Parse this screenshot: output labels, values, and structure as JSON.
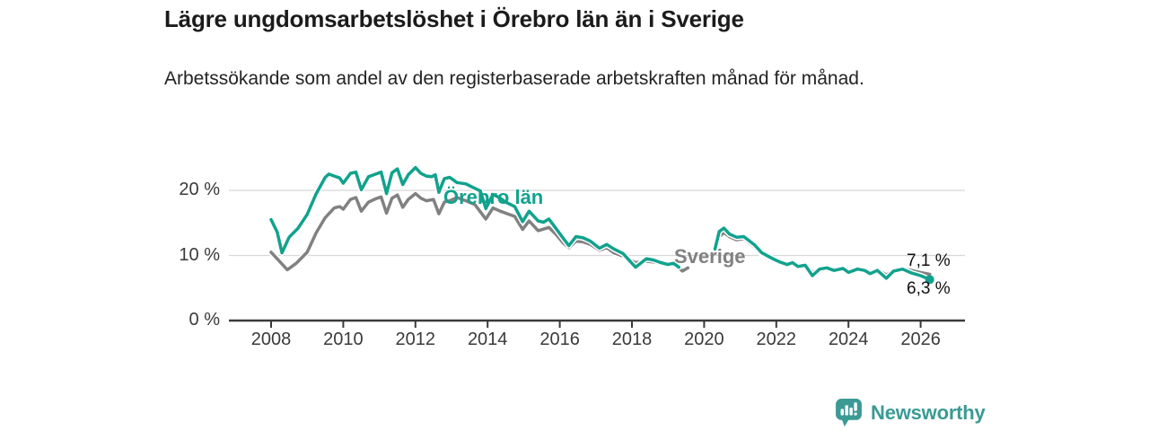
{
  "chart_data": {
    "type": "line",
    "title": "Lägre ungdomsarbetslöshet i Örebro län än i Sverige",
    "subtitle": "Arbetssökande som andel av den registerbaserade arbetskraften månad för månad.",
    "unit": "%",
    "x_domain": [
      2006.8,
      2027.2
    ],
    "x_ticks": [
      2008,
      2010,
      2012,
      2014,
      2016,
      2018,
      2020,
      2022,
      2024,
      2026
    ],
    "y_domain": [
      0,
      24.8
    ],
    "y_ticks": [
      {
        "value": 0,
        "label": "0 %"
      },
      {
        "value": 10,
        "label": "10 %"
      },
      {
        "value": 20,
        "label": "20 %"
      }
    ],
    "grid": "horizontal",
    "legend": "inline-labels",
    "note": "data gap between 2019 and 2020",
    "series": [
      {
        "name": "Sverige",
        "color": "#818181",
        "end_label": "7,1 %",
        "end_value": 7.1,
        "end_dot": false,
        "points": [
          [
            2008.0,
            10.5
          ],
          [
            2008.2,
            9.3
          ],
          [
            2008.45,
            7.8
          ],
          [
            2008.7,
            8.8
          ],
          [
            2009.0,
            10.5
          ],
          [
            2009.25,
            13.5
          ],
          [
            2009.5,
            15.8
          ],
          [
            2009.75,
            17.3
          ],
          [
            2009.9,
            17.5
          ],
          [
            2010.0,
            17.1
          ],
          [
            2010.2,
            18.6
          ],
          [
            2010.35,
            18.9
          ],
          [
            2010.5,
            16.8
          ],
          [
            2010.7,
            18.2
          ],
          [
            2010.9,
            18.7
          ],
          [
            2011.05,
            19.0
          ],
          [
            2011.2,
            16.5
          ],
          [
            2011.35,
            18.8
          ],
          [
            2011.5,
            19.3
          ],
          [
            2011.65,
            17.4
          ],
          [
            2011.8,
            18.6
          ],
          [
            2012.0,
            19.5
          ],
          [
            2012.15,
            18.8
          ],
          [
            2012.3,
            18.4
          ],
          [
            2012.5,
            18.6
          ],
          [
            2012.65,
            16.4
          ],
          [
            2012.8,
            18.2
          ],
          [
            2012.95,
            18.4
          ],
          [
            2013.15,
            18.9
          ],
          [
            2013.4,
            18.4
          ],
          [
            2013.65,
            17.8
          ],
          [
            2013.95,
            15.6
          ],
          [
            2014.15,
            17.3
          ],
          [
            2014.35,
            16.8
          ],
          [
            2014.5,
            16.5
          ],
          [
            2014.75,
            16.0
          ],
          [
            2014.97,
            14.0
          ],
          [
            2015.15,
            15.3
          ],
          [
            2015.4,
            13.8
          ],
          [
            2015.7,
            14.3
          ],
          [
            2015.9,
            13.2
          ],
          [
            2016.1,
            11.9
          ],
          [
            2016.25,
            11.2
          ],
          [
            2016.45,
            12.2
          ],
          [
            2016.65,
            12.1
          ],
          [
            2016.85,
            11.7
          ],
          [
            2017.1,
            10.8
          ],
          [
            2017.3,
            11.2
          ],
          [
            2017.5,
            10.4
          ],
          [
            2017.75,
            9.9
          ],
          [
            2018.1,
            8.9
          ],
          [
            2018.4,
            9.1
          ],
          [
            2018.6,
            9.0
          ],
          [
            2018.8,
            8.8
          ],
          [
            2019.0,
            8.7
          ],
          [
            2019.2,
            8.5
          ],
          [
            2019.4,
            7.6
          ],
          [
            2019.55,
            8.1
          ],
          null,
          [
            2020.3,
            10.8
          ],
          [
            2020.42,
            12.9
          ],
          [
            2020.55,
            13.5
          ],
          [
            2020.7,
            12.9
          ],
          [
            2020.9,
            12.4
          ],
          [
            2021.1,
            12.6
          ],
          [
            2021.4,
            11.3
          ],
          [
            2021.6,
            10.2
          ],
          [
            2021.9,
            9.4
          ],
          [
            2022.1,
            9.1
          ],
          [
            2022.3,
            8.7
          ],
          [
            2022.45,
            8.8
          ],
          [
            2022.6,
            8.4
          ],
          [
            2022.8,
            8.4
          ],
          [
            2023.0,
            7.4
          ],
          [
            2023.2,
            7.8
          ],
          [
            2023.4,
            8.0
          ],
          [
            2023.6,
            7.8
          ],
          [
            2023.85,
            8.1
          ],
          [
            2024.0,
            7.6
          ],
          [
            2024.25,
            8.0
          ],
          [
            2024.45,
            7.8
          ],
          [
            2024.6,
            7.4
          ],
          [
            2024.8,
            7.8
          ],
          [
            2025.05,
            7.0
          ],
          [
            2025.25,
            7.7
          ],
          [
            2025.5,
            8.0
          ],
          [
            2025.75,
            7.7
          ],
          [
            2026.0,
            7.4
          ],
          [
            2026.25,
            7.1
          ]
        ]
      },
      {
        "name": "Örebro län",
        "color": "#11a28d",
        "end_label": "6,3 %",
        "end_value": 6.3,
        "end_dot": true,
        "points": [
          [
            2008.0,
            15.5
          ],
          [
            2008.17,
            13.6
          ],
          [
            2008.3,
            10.4
          ],
          [
            2008.5,
            12.8
          ],
          [
            2008.75,
            14.2
          ],
          [
            2009.0,
            16.3
          ],
          [
            2009.25,
            19.5
          ],
          [
            2009.5,
            22.0
          ],
          [
            2009.6,
            22.5
          ],
          [
            2009.75,
            22.2
          ],
          [
            2009.9,
            21.9
          ],
          [
            2010.0,
            21.1
          ],
          [
            2010.2,
            22.6
          ],
          [
            2010.35,
            22.8
          ],
          [
            2010.5,
            20.1
          ],
          [
            2010.7,
            22.1
          ],
          [
            2010.9,
            22.5
          ],
          [
            2011.05,
            22.8
          ],
          [
            2011.2,
            19.5
          ],
          [
            2011.35,
            22.7
          ],
          [
            2011.5,
            23.3
          ],
          [
            2011.65,
            20.9
          ],
          [
            2011.8,
            22.4
          ],
          [
            2012.0,
            23.5
          ],
          [
            2012.15,
            22.6
          ],
          [
            2012.3,
            22.2
          ],
          [
            2012.45,
            22.1
          ],
          [
            2012.55,
            22.4
          ],
          [
            2012.65,
            19.7
          ],
          [
            2012.8,
            21.8
          ],
          [
            2012.95,
            22.0
          ],
          [
            2013.15,
            21.2
          ],
          [
            2013.4,
            21.0
          ],
          [
            2013.65,
            20.3
          ],
          [
            2013.8,
            19.9
          ],
          [
            2013.95,
            17.2
          ],
          [
            2014.15,
            19.4
          ],
          [
            2014.35,
            18.8
          ],
          [
            2014.5,
            18.2
          ],
          [
            2014.75,
            17.5
          ],
          [
            2014.97,
            15.2
          ],
          [
            2015.15,
            16.8
          ],
          [
            2015.4,
            15.3
          ],
          [
            2015.55,
            15.1
          ],
          [
            2015.7,
            15.6
          ],
          [
            2015.9,
            14.1
          ],
          [
            2016.1,
            12.6
          ],
          [
            2016.25,
            11.5
          ],
          [
            2016.45,
            12.9
          ],
          [
            2016.65,
            12.7
          ],
          [
            2016.85,
            12.2
          ],
          [
            2017.1,
            11.1
          ],
          [
            2017.3,
            11.7
          ],
          [
            2017.5,
            11.0
          ],
          [
            2017.75,
            10.3
          ],
          [
            2018.1,
            8.2
          ],
          [
            2018.4,
            9.5
          ],
          [
            2018.6,
            9.3
          ],
          [
            2018.8,
            8.9
          ],
          [
            2019.0,
            8.6
          ],
          [
            2019.15,
            8.8
          ],
          [
            2019.3,
            8.2
          ],
          null,
          [
            2020.3,
            11.0
          ],
          [
            2020.42,
            13.7
          ],
          [
            2020.55,
            14.2
          ],
          [
            2020.7,
            13.3
          ],
          [
            2020.9,
            12.8
          ],
          [
            2021.1,
            12.9
          ],
          [
            2021.4,
            11.6
          ],
          [
            2021.6,
            10.4
          ],
          [
            2021.9,
            9.5
          ],
          [
            2022.1,
            9.0
          ],
          [
            2022.3,
            8.6
          ],
          [
            2022.45,
            8.9
          ],
          [
            2022.6,
            8.3
          ],
          [
            2022.8,
            8.5
          ],
          [
            2023.0,
            6.9
          ],
          [
            2023.2,
            7.9
          ],
          [
            2023.4,
            8.1
          ],
          [
            2023.6,
            7.7
          ],
          [
            2023.85,
            8.0
          ],
          [
            2024.0,
            7.4
          ],
          [
            2024.25,
            7.9
          ],
          [
            2024.45,
            7.7
          ],
          [
            2024.6,
            7.2
          ],
          [
            2024.8,
            7.7
          ],
          [
            2025.05,
            6.5
          ],
          [
            2025.25,
            7.6
          ],
          [
            2025.5,
            7.9
          ],
          [
            2025.75,
            7.3
          ],
          [
            2026.0,
            6.9
          ],
          [
            2026.25,
            6.3
          ]
        ]
      }
    ]
  },
  "footer": {
    "brand": "Newsworthy"
  }
}
